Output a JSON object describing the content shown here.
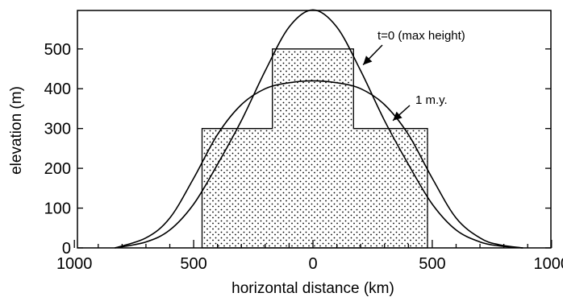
{
  "chart_data": {
    "type": "line",
    "title": "",
    "xlabel": "horizontal distance  (km)",
    "ylabel": "elevation  (m)",
    "xlim": [
      -1000,
      1000
    ],
    "ylim": [
      0,
      600
    ],
    "x_tick_values": [
      -1000,
      -500,
      0,
      500,
      1000
    ],
    "x_tick_labels": [
      "1000",
      "500",
      "0",
      "500",
      "1000"
    ],
    "y_tick_values": [
      0,
      100,
      200,
      300,
      400,
      500
    ],
    "y_tick_labels": [
      "0",
      "100",
      "200",
      "300",
      "400",
      "500"
    ],
    "grid": false,
    "legend": "none",
    "initial_block": {
      "fill": "stippled",
      "outline": [
        [
          -465,
          0
        ],
        [
          -465,
          300
        ],
        [
          -170,
          300
        ],
        [
          -170,
          500
        ],
        [
          170,
          500
        ],
        [
          170,
          300
        ],
        [
          480,
          300
        ],
        [
          480,
          0
        ]
      ]
    },
    "series": [
      {
        "label": "t=0  (max height)",
        "x": [
          -830,
          -700,
          -600,
          -500,
          -400,
          -300,
          -200,
          -100,
          0,
          100,
          200,
          300,
          400,
          500,
          600,
          700,
          780,
          880
        ],
        "y": [
          0,
          15,
          45,
          110,
          210,
          320,
          445,
          555,
          598,
          555,
          445,
          320,
          210,
          110,
          45,
          15,
          5,
          0
        ]
      },
      {
        "label": "1 m.y.",
        "x": [
          -830,
          -700,
          -600,
          -500,
          -400,
          -300,
          -200,
          -100,
          0,
          100,
          200,
          300,
          400,
          500,
          600,
          700,
          780,
          880
        ],
        "y": [
          0,
          25,
          75,
          175,
          285,
          360,
          400,
          415,
          420,
          415,
          400,
          360,
          285,
          175,
          75,
          25,
          8,
          0
        ]
      }
    ],
    "annotations": [
      {
        "text": "t=0  (max height)",
        "points_to": [
          210,
          460
        ]
      },
      {
        "text": "1 m.y.",
        "points_to": [
          335,
          320
        ]
      }
    ]
  }
}
